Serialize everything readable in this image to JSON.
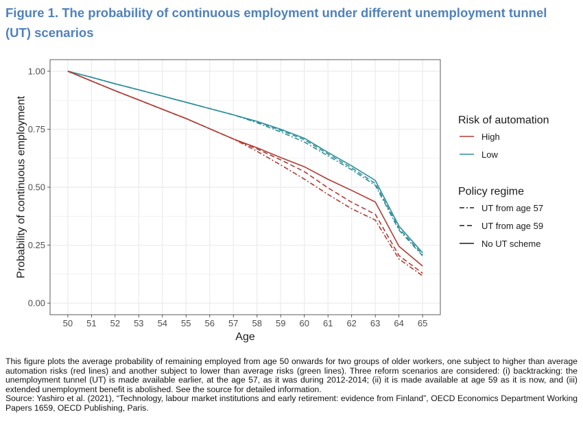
{
  "title": "Figure 1. The probability of continuous employment under different unemployment tunnel (UT) scenarios",
  "notes": "This figure plots the average probability of remaining employed from age 50 onwards for two groups of older workers, one subject to higher than average automation risks (red lines) and another subject to lower than average risks (green lines). Three reform scenarios are considered: (i) backtracking: the unemployment tunnel (UT) is made available earlier, at the age 57, as it was during 2012-2014; (ii) it is made available at age 59 as it is now, and (iii) extended unemployment benefit is abolished. See the source for detailed information.",
  "source": "Source: Yashiro et al. (2021), “Technology, labour market institutions and early retirement: evidence from Finland”, OECD Economics Department Working Papers 1659, OECD Publishing, Paris.",
  "chart_data": {
    "type": "line",
    "xlabel": "Age",
    "ylabel": "Probability of continuous employment",
    "x": [
      50,
      51,
      52,
      53,
      54,
      55,
      56,
      57,
      58,
      59,
      60,
      61,
      62,
      63,
      64,
      65
    ],
    "x_ticks": [
      "50",
      "51",
      "52",
      "53",
      "54",
      "55",
      "56",
      "57",
      "58",
      "59",
      "60",
      "61",
      "62",
      "63",
      "64",
      "65"
    ],
    "y_ticks": [
      "0.00",
      "0.25",
      "0.50",
      "0.75",
      "1.00"
    ],
    "xlim": [
      49.25,
      65.75
    ],
    "ylim": [
      -0.05,
      1.05
    ],
    "grid": true,
    "legend_position": "right",
    "colors": {
      "High": "#b03a33",
      "Low": "#2f8f9a",
      "panel": "#ffffff",
      "grid": "#ebebeb"
    },
    "legends": [
      {
        "title": "Risk of automation",
        "type": "color",
        "entries": [
          {
            "label": "High",
            "color": "#b03a33"
          },
          {
            "label": "Low",
            "color": "#2f8f9a"
          }
        ]
      },
      {
        "title": "Policy regime",
        "type": "linetype",
        "entries": [
          {
            "label": "UT from age 57",
            "dash": "7,3,2,3"
          },
          {
            "label": "UT from age 59",
            "dash": "7,4"
          },
          {
            "label": "No UT scheme",
            "dash": ""
          }
        ]
      }
    ],
    "series": [
      {
        "risk": "Low",
        "policy": "UT from age 57",
        "color": "#2f8f9a",
        "dash": "7,3,2,3",
        "values": [
          1.0,
          0.974,
          0.946,
          0.92,
          0.893,
          0.866,
          0.839,
          0.812,
          0.778,
          0.738,
          0.695,
          0.635,
          0.575,
          0.508,
          0.315,
          0.204
        ]
      },
      {
        "risk": "Low",
        "policy": "UT from age 59",
        "color": "#2f8f9a",
        "dash": "7,4",
        "values": [
          1.0,
          0.974,
          0.946,
          0.92,
          0.893,
          0.866,
          0.839,
          0.812,
          0.782,
          0.745,
          0.705,
          0.643,
          0.583,
          0.516,
          0.322,
          0.209
        ]
      },
      {
        "risk": "Low",
        "policy": "No UT scheme",
        "color": "#2f8f9a",
        "dash": "",
        "values": [
          1.0,
          0.974,
          0.946,
          0.92,
          0.893,
          0.866,
          0.839,
          0.812,
          0.784,
          0.75,
          0.711,
          0.65,
          0.592,
          0.529,
          0.332,
          0.217
        ]
      },
      {
        "risk": "High",
        "policy": "UT from age 57",
        "color": "#b03a33",
        "dash": "7,3,2,3",
        "values": [
          1.0,
          0.958,
          0.916,
          0.876,
          0.836,
          0.796,
          0.752,
          0.708,
          0.655,
          0.596,
          0.535,
          0.469,
          0.407,
          0.358,
          0.19,
          0.118
        ]
      },
      {
        "risk": "High",
        "policy": "UT from age 59",
        "color": "#b03a33",
        "dash": "7,4",
        "values": [
          1.0,
          0.958,
          0.916,
          0.876,
          0.836,
          0.796,
          0.752,
          0.708,
          0.665,
          0.618,
          0.567,
          0.497,
          0.435,
          0.383,
          0.205,
          0.129
        ]
      },
      {
        "risk": "High",
        "policy": "No UT scheme",
        "color": "#b03a33",
        "dash": "",
        "values": [
          1.0,
          0.958,
          0.916,
          0.876,
          0.836,
          0.796,
          0.752,
          0.708,
          0.67,
          0.628,
          0.588,
          0.534,
          0.486,
          0.436,
          0.245,
          0.16
        ]
      }
    ]
  }
}
